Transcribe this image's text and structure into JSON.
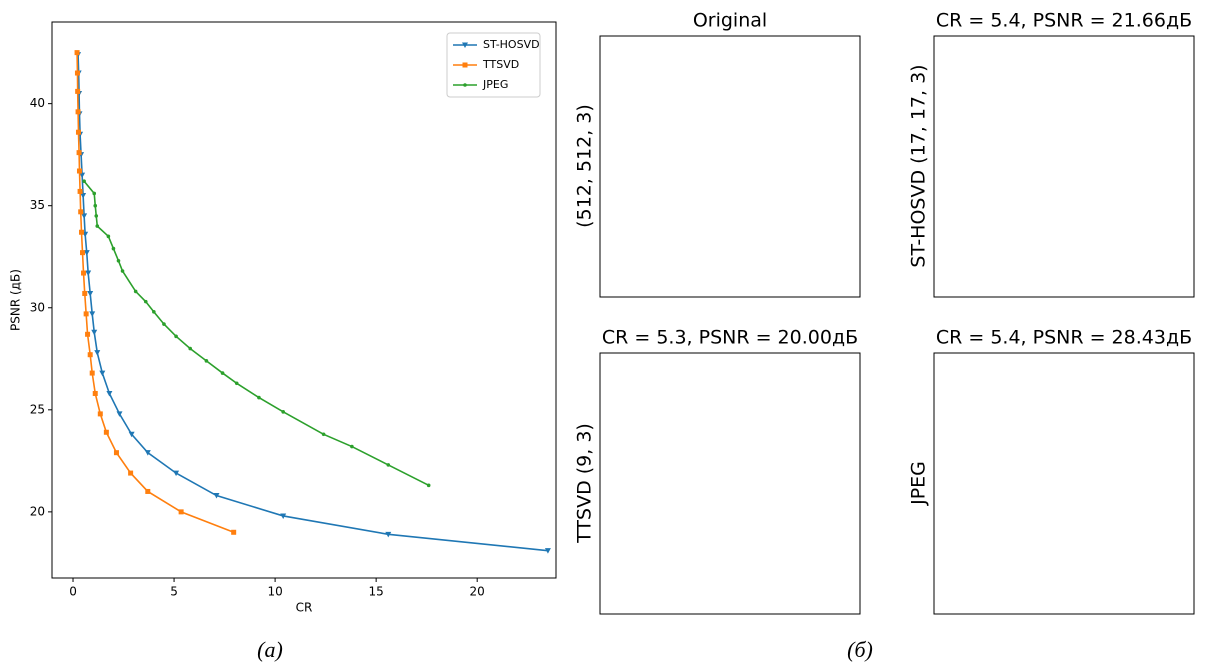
{
  "chart_data": {
    "type": "line",
    "xlabel": "CR",
    "ylabel": "PSNR (дБ)",
    "xlim": [
      -1.04,
      23.9
    ],
    "ylim": [
      16.76,
      44.0
    ],
    "xticks": [
      0,
      5,
      10,
      15,
      20
    ],
    "yticks": [
      20,
      25,
      30,
      35,
      40
    ],
    "legend": "upper right",
    "grid": false,
    "series": [
      {
        "name": "ST-HOSVD",
        "color": "#1f77b4",
        "marker": "v",
        "x": [
          0.25,
          0.28,
          0.3,
          0.32,
          0.35,
          0.4,
          0.45,
          0.5,
          0.55,
          0.6,
          0.68,
          0.75,
          0.85,
          0.95,
          1.05,
          1.2,
          1.45,
          1.8,
          2.3,
          2.9,
          3.7,
          5.1,
          7.1,
          10.4,
          15.6,
          23.5
        ],
        "values": [
          42.4,
          41.5,
          40.5,
          39.5,
          38.5,
          37.5,
          36.5,
          35.5,
          34.5,
          33.6,
          32.7,
          31.7,
          30.7,
          29.7,
          28.8,
          27.8,
          26.8,
          25.8,
          24.8,
          23.8,
          22.9,
          21.9,
          20.8,
          19.8,
          18.9,
          18.1
        ]
      },
      {
        "name": "TTSVD",
        "color": "#ff7f0e",
        "marker": "s",
        "x": [
          0.2,
          0.22,
          0.23,
          0.25,
          0.27,
          0.3,
          0.32,
          0.35,
          0.38,
          0.42,
          0.47,
          0.52,
          0.58,
          0.65,
          0.72,
          0.85,
          0.95,
          1.1,
          1.35,
          1.65,
          2.15,
          2.85,
          3.7,
          5.35,
          7.95
        ],
        "values": [
          42.5,
          41.5,
          40.6,
          39.6,
          38.6,
          37.6,
          36.7,
          35.7,
          34.7,
          33.7,
          32.7,
          31.7,
          30.7,
          29.7,
          28.7,
          27.7,
          26.8,
          25.8,
          24.8,
          23.9,
          22.9,
          21.9,
          21.0,
          20.0,
          19.0
        ]
      },
      {
        "name": "JPEG",
        "color": "#2ca02c",
        "marker": ".",
        "x": [
          0.55,
          1.05,
          1.1,
          1.15,
          1.2,
          1.75,
          2.0,
          2.25,
          2.45,
          3.1,
          3.6,
          4.0,
          4.5,
          5.1,
          5.8,
          6.6,
          7.4,
          8.1,
          9.2,
          10.4,
          12.4,
          13.8,
          15.6,
          17.6
        ],
        "values": [
          36.2,
          35.6,
          35.0,
          34.5,
          34.0,
          33.5,
          32.9,
          32.3,
          31.8,
          30.8,
          30.3,
          29.8,
          29.2,
          28.6,
          28.0,
          27.4,
          26.8,
          26.3,
          25.6,
          24.9,
          23.8,
          23.2,
          22.3,
          21.3
        ]
      }
    ]
  },
  "panels": [
    {
      "title": "Original",
      "label": "(512, 512, 3)"
    },
    {
      "title": "CR = 5.4, PSNR = 21.66дБ",
      "label": "ST-HOSVD (17, 17, 3)"
    },
    {
      "title": "CR = 5.3, PSNR = 20.00дБ",
      "label": "TTSVD (9, 3)"
    },
    {
      "title": "CR = 5.4, PSNR = 28.43дБ",
      "label": "JPEG"
    }
  ],
  "captions": [
    "(a)",
    "(б)"
  ]
}
